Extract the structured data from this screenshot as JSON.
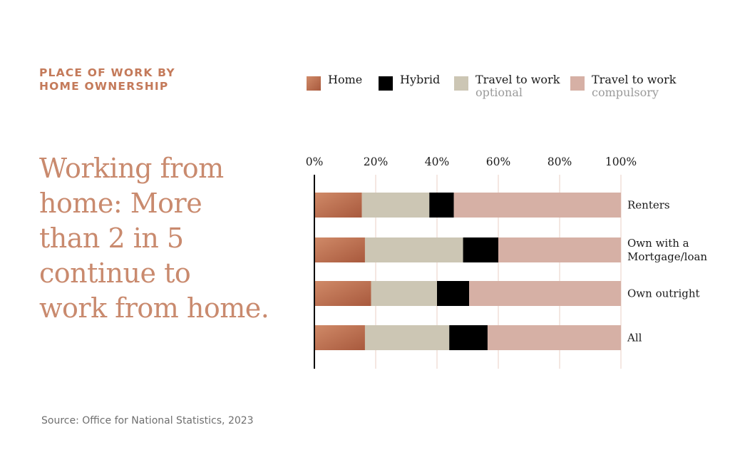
{
  "header": {
    "eyebrow_line1": "PLACE OF WORK BY",
    "eyebrow_line2": "HOME OWNERSHIP",
    "headline_lines": [
      "Working from",
      "home: More",
      "than 2 in 5",
      "continue to",
      "work from home."
    ]
  },
  "source": "Source: Office for National Statistics, 2023",
  "colors": {
    "home": "#c27556",
    "hybrid": "#000000",
    "travel_optional": "#ccc6b4",
    "travel_compulsory": "#d6b0a5",
    "gridline": "#e9cfc5",
    "axis": "#000000"
  },
  "legend": [
    {
      "key": "home",
      "label": "Home",
      "sublabel": ""
    },
    {
      "key": "hybrid",
      "label": "Hybrid",
      "sublabel": ""
    },
    {
      "key": "travel_optional",
      "label": "Travel to work",
      "sublabel": "optional"
    },
    {
      "key": "travel_compulsory",
      "label": "Travel to work",
      "sublabel": "compulsory"
    }
  ],
  "chart_data": {
    "type": "bar",
    "orientation": "horizontal",
    "stacked": true,
    "xlim": [
      0,
      100
    ],
    "x_ticks": [
      0,
      20,
      40,
      60,
      80,
      100
    ],
    "x_tick_labels": [
      "0%",
      "20%",
      "40%",
      "60%",
      "80%",
      "100%"
    ],
    "grid": true,
    "legend_position": "top",
    "categories": [
      {
        "label_lines": [
          "Renters"
        ]
      },
      {
        "label_lines": [
          "Own with a",
          "Mortgage/loan"
        ]
      },
      {
        "label_lines": [
          "Own outright"
        ]
      },
      {
        "label_lines": [
          "All"
        ]
      }
    ],
    "series": [
      {
        "name": "Home",
        "key": "home",
        "values": [
          15.5,
          16.5,
          18.5,
          16.5
        ]
      },
      {
        "name": "Travel to work optional",
        "key": "travel_optional",
        "values": [
          22,
          32,
          21.5,
          27.5
        ]
      },
      {
        "name": "Hybrid",
        "key": "hybrid",
        "values": [
          8,
          11.5,
          10.5,
          12.5
        ]
      },
      {
        "name": "Travel to work compulsory",
        "key": "travel_compulsory",
        "values": [
          54.5,
          40,
          49.5,
          43.5
        ]
      }
    ]
  }
}
